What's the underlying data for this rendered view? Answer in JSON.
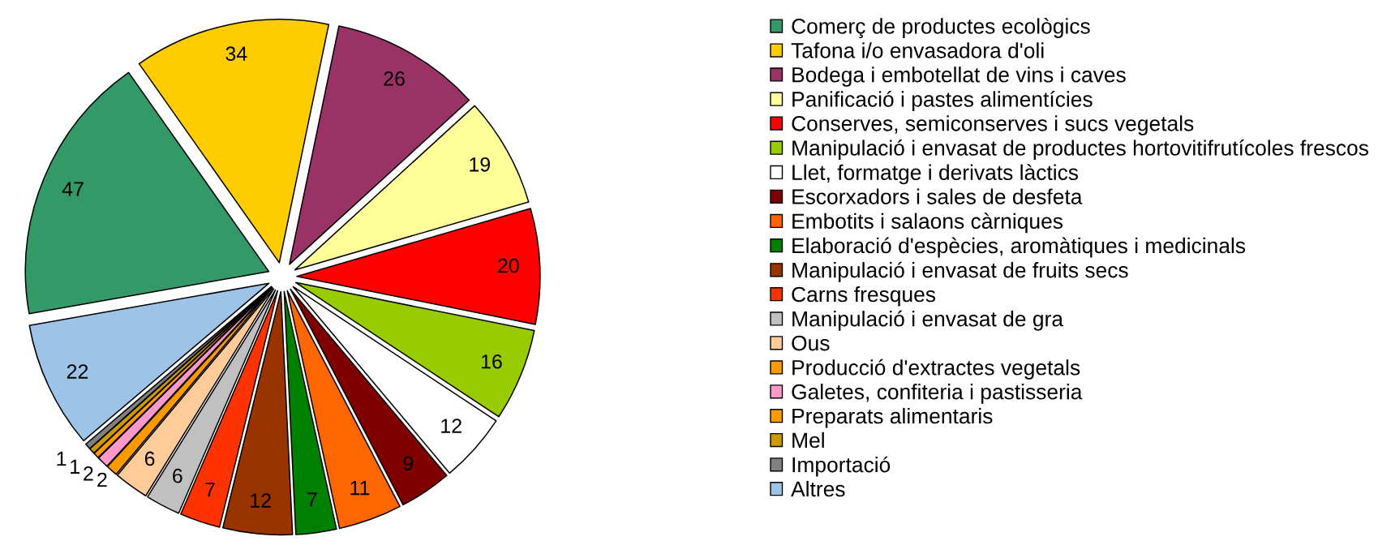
{
  "chart_data": {
    "type": "pie",
    "categories": [
      "Comerç de productes ecològics",
      "Tafona i/o envasadora d'oli",
      "Bodega i embotellat de vins i caves",
      "Panificació i pastes alimentícies",
      "Conserves, semiconserves i sucs vegetals",
      "Manipulació i envasat de productes hortovitifrutícoles frescos",
      "Llet, formatge i derivats làctics",
      "Escorxadors i sales de desfeta",
      "Embotits i salaons càrniques",
      "Elaboració d'espècies, aromàtiques i medicinals",
      "Manipulació i envasat de fruits secs",
      "Carns fresques",
      "Manipulació i envasat de gra",
      "Ous",
      "Producció d'extractes vegetals",
      "Galetes, confiteria i pastisseria",
      "Preparats alimentaris",
      "Mel",
      "Importació",
      "Altres"
    ],
    "values": [
      47,
      34,
      26,
      19,
      20,
      16,
      12,
      9,
      11,
      7,
      12,
      7,
      6,
      6,
      2,
      2,
      1,
      1,
      1,
      22
    ],
    "colors": [
      "#339966",
      "#ffcc00",
      "#993366",
      "#ffff99",
      "#ff0000",
      "#99cc00",
      "#ffffff",
      "#800000",
      "#ff6600",
      "#008000",
      "#993300",
      "#ff3300",
      "#c0c0c0",
      "#ffcc99",
      "#ff9900",
      "#ff99cc",
      "#ff9900",
      "#cc9900",
      "#808080",
      "#9dc3e6"
    ],
    "value_labels": [
      "47",
      "34",
      "26",
      "19",
      "20",
      "16",
      "12",
      "9",
      "11",
      "7",
      "12",
      "7",
      "6",
      "6",
      "2",
      "2",
      "1",
      null,
      "1",
      "22"
    ],
    "legend": "right"
  }
}
